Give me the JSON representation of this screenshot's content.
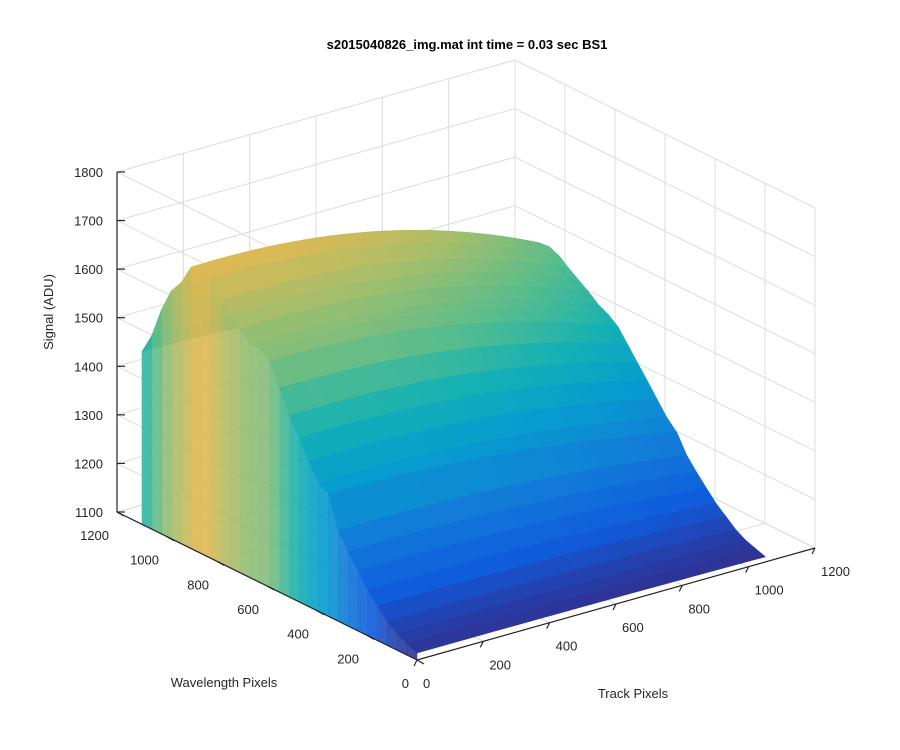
{
  "chart_data": {
    "type": "surface",
    "title": "s2015040826_img.mat int time = 0.03 sec   BS1",
    "xlabel": "Track Pixels",
    "ylabel": "Wavelength Pixels",
    "zlabel": "Signal (ADU)",
    "xlim": [
      0,
      1200
    ],
    "ylim": [
      0,
      1200
    ],
    "zlim": [
      1100,
      1800
    ],
    "xticks": [
      0,
      200,
      400,
      600,
      800,
      1000,
      1200
    ],
    "yticks": [
      0,
      200,
      400,
      600,
      800,
      1000,
      1200
    ],
    "zticks": [
      1100,
      1200,
      1300,
      1400,
      1500,
      1600,
      1700,
      1800
    ],
    "data_extent": {
      "track_max": 1050,
      "wavelength_max": 1100
    },
    "wavelength_profile": {
      "wavelength": [
        0,
        100,
        200,
        300,
        400,
        500,
        600,
        700,
        800,
        900,
        1000,
        1100
      ],
      "signal_at_track_center": [
        1115,
        1140,
        1200,
        1280,
        1380,
        1480,
        1560,
        1620,
        1670,
        1690,
        1620,
        1440
      ]
    },
    "peak_signal": 1780,
    "colormap": "parula",
    "grid": true
  }
}
